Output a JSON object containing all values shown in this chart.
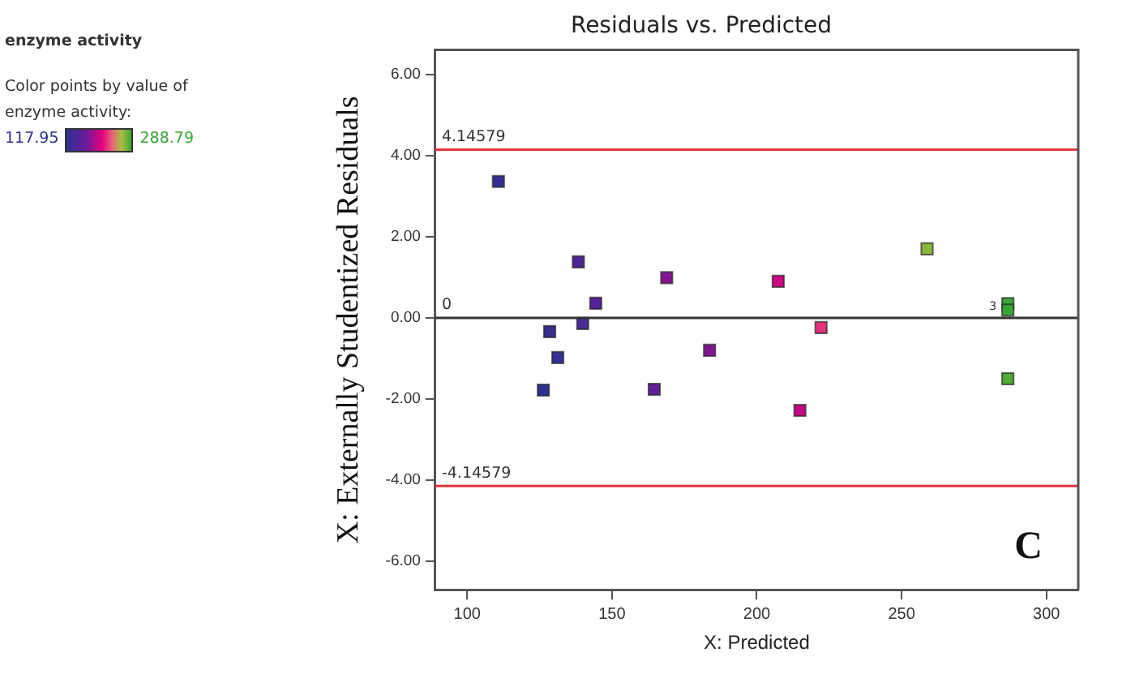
{
  "chart_data": {
    "type": "scatter",
    "title": "Residuals vs. Predicted",
    "xlabel": "X: Predicted",
    "ylabel": "X: Externally Studentized Residuals",
    "legend_title": "enzyme activity",
    "x": [
      110.8,
      138.4,
      144.4,
      139.9,
      128.5,
      131.3,
      126.3,
      164.6,
      168.9,
      183.7,
      207.4,
      222.2,
      214.9,
      258.8,
      286.7,
      286.7,
      286.7
    ],
    "values": [
      3.36,
      1.38,
      0.36,
      -0.14,
      -0.34,
      -0.98,
      -1.78,
      -1.76,
      0.99,
      -0.8,
      0.9,
      -0.24,
      -2.28,
      1.7,
      0.35,
      0.19,
      -1.5
    ],
    "colors": [
      "#362e93",
      "#4e2596",
      "#532397",
      "#482895",
      "#3a2d94",
      "#362e93",
      "#2e3192",
      "#5f1f99",
      "#891493",
      "#831594",
      "#d20481",
      "#e7317c",
      "#c40883",
      "#8ab73d",
      "#3aa535",
      "#3aa535",
      "#53ab37"
    ],
    "marker": "square",
    "xlim": [
      89,
      311
    ],
    "xticks": [
      100,
      150,
      200,
      250,
      300
    ],
    "ylim": [
      -6.7,
      6.6
    ],
    "yticks": [
      {
        "value": -6,
        "label": "-6.00"
      },
      {
        "value": -4,
        "label": "-4.00"
      },
      {
        "value": -2,
        "label": "-2.00"
      },
      {
        "value": 0,
        "label": "0.00"
      },
      {
        "value": 2,
        "label": "2.00"
      },
      {
        "value": 4,
        "label": "4.00"
      },
      {
        "value": 6,
        "label": "6.00"
      }
    ],
    "ref_lines": [
      {
        "axis": "y",
        "value": 4.14579,
        "label": "4.14579",
        "color": "#e8343f"
      },
      {
        "axis": "y",
        "value": -4.14579,
        "label": "-4.14579",
        "color": "#e8343f"
      },
      {
        "axis": "y",
        "value": 0,
        "label": "0",
        "color": "#333333"
      }
    ],
    "annotations": [
      "Color points by value of enzyme activity:",
      "117.95",
      "288.79",
      "C",
      {
        "text": "3",
        "x": 286.7,
        "y": 0.27
      }
    ],
    "grid": false,
    "legend": false
  }
}
